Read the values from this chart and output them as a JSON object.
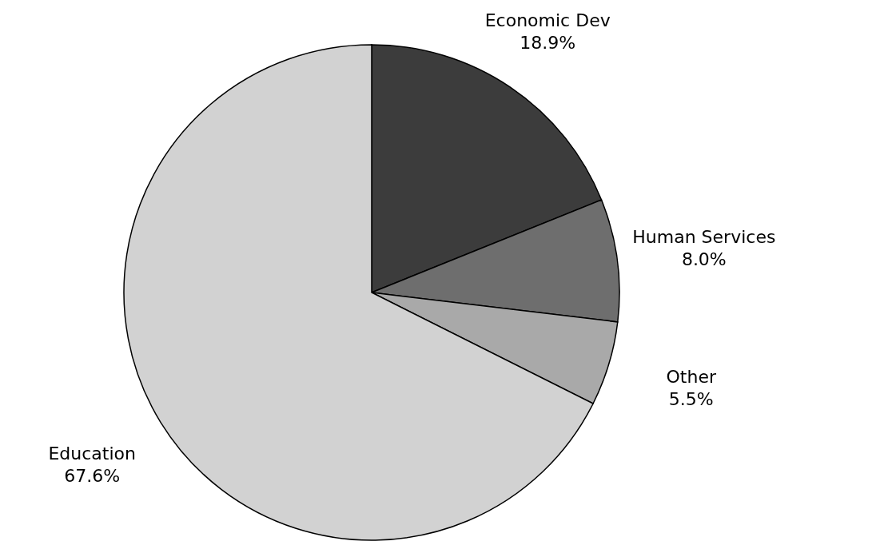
{
  "chart_data": {
    "type": "pie",
    "categories": [
      "Economic Dev",
      "Human Services",
      "Other",
      "Education"
    ],
    "values": [
      18.9,
      8.0,
      5.5,
      67.6
    ],
    "value_labels": [
      "18.9%",
      "8.0%",
      "5.5%",
      "67.6%"
    ],
    "colors": [
      "#3c3c3c",
      "#6e6e6e",
      "#a9a9a9",
      "#d2d2d2"
    ]
  }
}
